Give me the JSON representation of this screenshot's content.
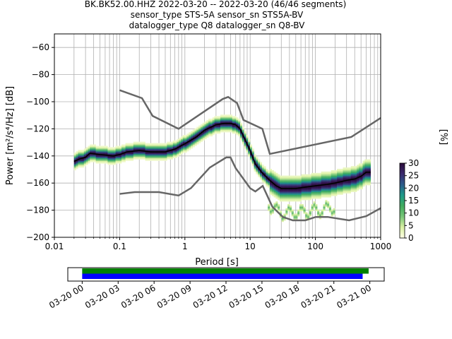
{
  "chart_data": [
    {
      "type": "heatmap",
      "title_lines": [
        "BK.BK52.00.HHZ   2022-03-20 -- 2022-03-20  (46/46 segments)",
        "sensor_type STS-5A sensor_sn STS5A-BV",
        "datalogger_type Q8 datalogger_sn Q8-BV"
      ],
      "xlabel": "Period [s]",
      "ylabel": "Power [m²/s⁴/Hz] [dB]",
      "xscale": "log",
      "xlim": [
        0.01,
        1000
      ],
      "ylim": [
        -200,
        -50
      ],
      "xticks": [
        {
          "v": 0.01,
          "label": "0.01"
        },
        {
          "v": 0.1,
          "label": "0.1"
        },
        {
          "v": 1,
          "label": "1"
        },
        {
          "v": 10,
          "label": "10"
        },
        {
          "v": 100,
          "label": "100"
        },
        {
          "v": 1000,
          "label": "1000"
        }
      ],
      "yticks": [
        {
          "v": -60,
          "label": "−60"
        },
        {
          "v": -80,
          "label": "−80"
        },
        {
          "v": -100,
          "label": "−100"
        },
        {
          "v": -120,
          "label": "−120"
        },
        {
          "v": -140,
          "label": "−140"
        },
        {
          "v": -160,
          "label": "−160"
        },
        {
          "v": -180,
          "label": "−180"
        },
        {
          "v": -200,
          "label": "−200"
        }
      ],
      "grid": true,
      "colorbar": {
        "label": "[%]",
        "min": 0,
        "max": 30,
        "ticks": [
          {
            "v": 0,
            "label": "0"
          },
          {
            "v": 5,
            "label": "5"
          },
          {
            "v": 10,
            "label": "10"
          },
          {
            "v": 15,
            "label": "15"
          },
          {
            "v": 20,
            "label": "20"
          },
          {
            "v": 25,
            "label": "25"
          },
          {
            "v": 30,
            "label": "30"
          }
        ],
        "colors": [
          "#ffffe5",
          "#d9f0a3",
          "#78c679",
          "#41ab5d",
          "#1d9a8a",
          "#2b5b8a",
          "#3b2a6e",
          "#2a0a3a"
        ]
      },
      "noise_models": {
        "high": {
          "periods": [
            0.1,
            0.22,
            0.32,
            0.8,
            3.8,
            4.6,
            6.3,
            7.9,
            15.4,
            20,
            354.8,
            1000
          ],
          "values": [
            -91.5,
            -97.4,
            -110.5,
            -120,
            -98,
            -96.5,
            -101,
            -113.5,
            -120,
            -138.5,
            -126,
            -112
          ]
        },
        "low": {
          "periods": [
            0.1,
            0.17,
            0.4,
            0.8,
            1.24,
            2.4,
            4.3,
            5,
            6,
            10,
            12,
            15.6,
            21.9,
            31.6,
            45,
            70,
            101,
            154,
            328,
            600,
            1000
          ],
          "values": [
            -168,
            -166.7,
            -166.7,
            -169.2,
            -163.7,
            -148.6,
            -141.1,
            -141.1,
            -149,
            -163.8,
            -166.2,
            -162.1,
            -177.5,
            -185,
            -187.5,
            -187.5,
            -185,
            -185,
            -187.5,
            -184.4,
            -178.5
          ]
        }
      },
      "median": {
        "periods": [
          0.02,
          0.025,
          0.03,
          0.035,
          0.05,
          0.08,
          0.1,
          0.13,
          0.2,
          0.3,
          0.5,
          0.7,
          1,
          1.5,
          2,
          3,
          4,
          5,
          6,
          7,
          8,
          10,
          12,
          15,
          20,
          25,
          30,
          40,
          50,
          70,
          100,
          150,
          200,
          300,
          400,
          500,
          600,
          700
        ],
        "values": [
          -144,
          -142,
          -141,
          -138,
          -139,
          -140,
          -139,
          -137,
          -136,
          -137,
          -137,
          -135,
          -131,
          -126,
          -121,
          -117,
          -116,
          -116,
          -117,
          -120,
          -126,
          -136,
          -146,
          -152,
          -158,
          -162,
          -164,
          -164,
          -164,
          -163,
          -162,
          -161,
          -160,
          -158,
          -157,
          -155,
          -152,
          -152
        ]
      },
      "availability": {
        "ticks": [
          "03-20 00",
          "03-20 03",
          "03-20 06",
          "03-20 09",
          "03-20 12",
          "03-20 15",
          "03-20 18",
          "03-20 21",
          "03-21 00"
        ],
        "range_hours": [
          -1.2,
          25.2
        ],
        "bars": [
          {
            "start_hours": 0,
            "end_hours": 23.9,
            "color": "#008000"
          },
          {
            "start_hours": 0,
            "end_hours": 23.4,
            "color": "#0000ff"
          }
        ]
      }
    }
  ]
}
